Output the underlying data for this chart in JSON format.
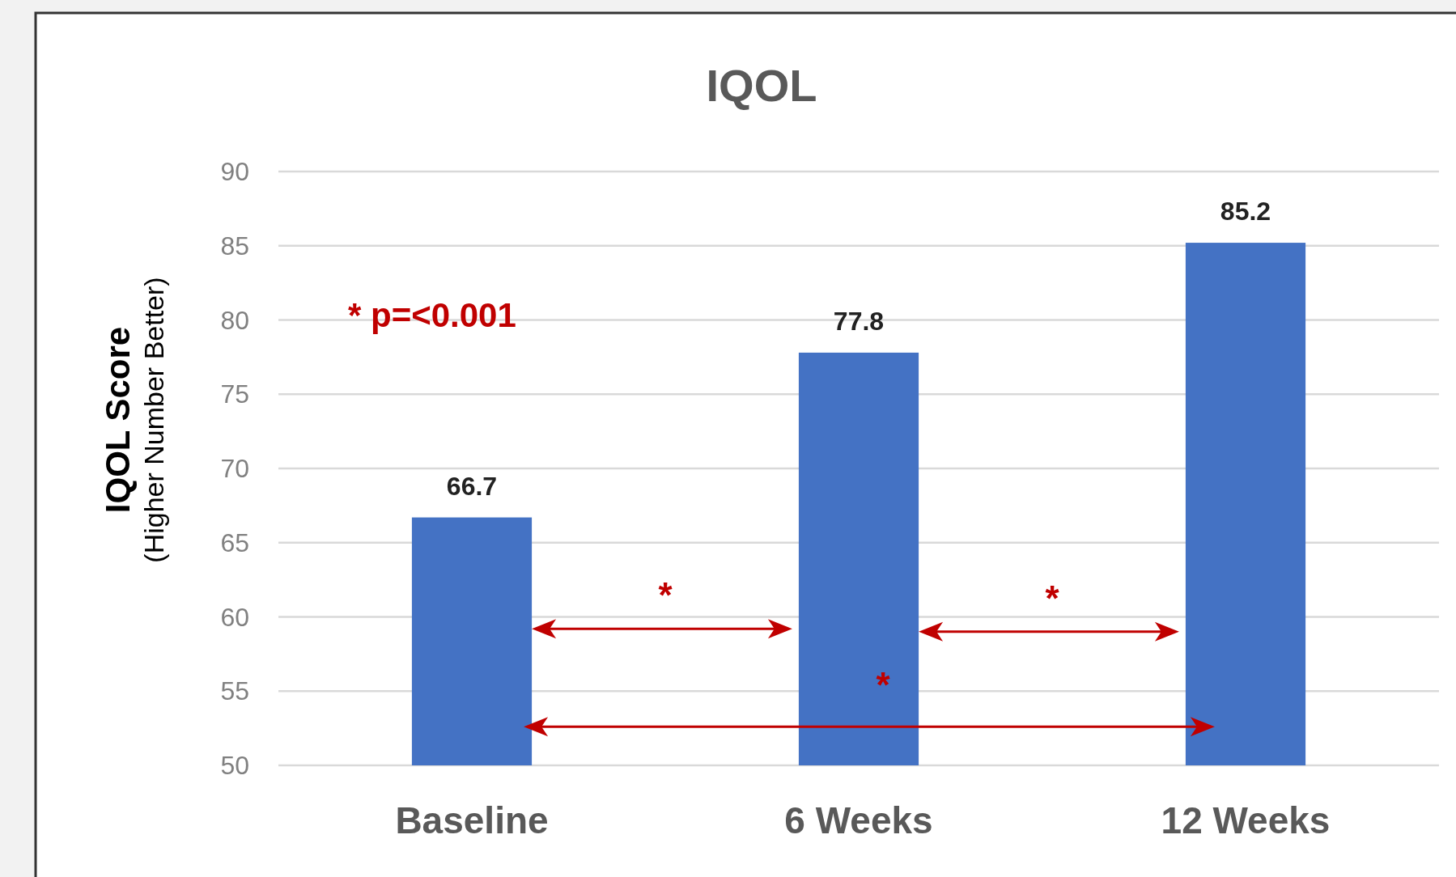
{
  "chart_data": {
    "type": "bar",
    "title": "IQOL",
    "ylabel": "IQOL Score\n(Higher Number Better)",
    "categories": [
      "Baseline",
      "6 Weeks",
      "12 Weeks"
    ],
    "values": [
      66.7,
      77.8,
      85.2
    ],
    "color": "#4472c4",
    "ylim": [
      50,
      90
    ],
    "yticks": [
      50,
      55,
      60,
      65,
      70,
      75,
      80,
      85,
      90
    ],
    "grid": "y",
    "data_labels": true,
    "annotations": [
      "* p=<0.001",
      "*",
      "*",
      "*"
    ]
  }
}
